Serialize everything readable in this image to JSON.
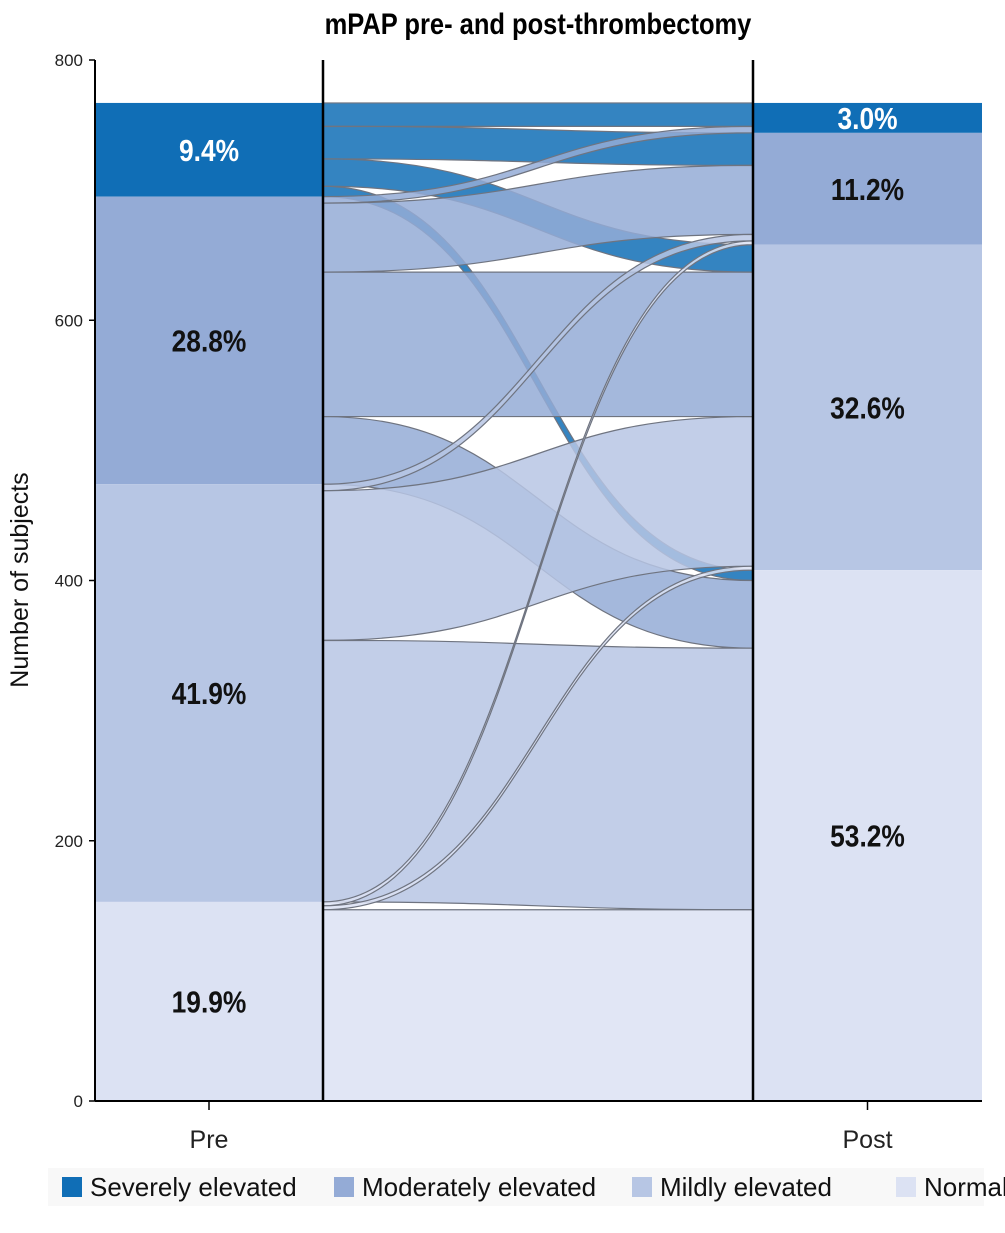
{
  "chart_data": {
    "type": "sankey",
    "title": "mPAP pre- and post-thrombectomy",
    "ylabel": "Number of subjects",
    "xlabel": "",
    "ylim": [
      0,
      800
    ],
    "yticks": [
      "0",
      "200",
      "400",
      "600",
      "800"
    ],
    "ytick_values": [
      0,
      200,
      400,
      600,
      800
    ],
    "stages": [
      "Pre",
      "Post"
    ],
    "categories": [
      "Severely elevated",
      "Moderately elevated",
      "Mildly elevated",
      "Normal"
    ],
    "colors": {
      "Severely elevated": "#106eb6",
      "Moderately elevated": "#94abd6",
      "Mildly elevated": "#b7c6e4",
      "Normal": "#dce2f3"
    },
    "pre": {
      "values": [
        72,
        221,
        321,
        153
      ],
      "labels": [
        "9.4%",
        "28.8%",
        "41.9%",
        "19.9%"
      ]
    },
    "post": {
      "values": [
        23,
        86,
        250,
        408
      ],
      "labels": [
        "3.0%",
        "11.2%",
        "32.6%",
        "53.2%"
      ]
    },
    "flows": [
      {
        "from": "Severely elevated",
        "to": "Severely elevated",
        "value": 18
      },
      {
        "from": "Severely elevated",
        "to": "Moderately elevated",
        "value": 25
      },
      {
        "from": "Severely elevated",
        "to": "Mildly elevated",
        "value": 21
      },
      {
        "from": "Severely elevated",
        "to": "Normal",
        "value": 8
      },
      {
        "from": "Moderately elevated",
        "to": "Severely elevated",
        "value": 5
      },
      {
        "from": "Moderately elevated",
        "to": "Moderately elevated",
        "value": 53
      },
      {
        "from": "Moderately elevated",
        "to": "Mildly elevated",
        "value": 111
      },
      {
        "from": "Moderately elevated",
        "to": "Normal",
        "value": 52
      },
      {
        "from": "Mildly elevated",
        "to": "Moderately elevated",
        "value": 5
      },
      {
        "from": "Mildly elevated",
        "to": "Mildly elevated",
        "value": 115
      },
      {
        "from": "Mildly elevated",
        "to": "Normal",
        "value": 201
      },
      {
        "from": "Normal",
        "to": "Moderately elevated",
        "value": 3
      },
      {
        "from": "Normal",
        "to": "Mildly elevated",
        "value": 3
      },
      {
        "from": "Normal",
        "to": "Normal",
        "value": 147
      }
    ],
    "legend": {
      "position": "bottom",
      "entries": [
        "Severely elevated",
        "Moderately elevated",
        "Mildly elevated",
        "Normal"
      ]
    }
  }
}
